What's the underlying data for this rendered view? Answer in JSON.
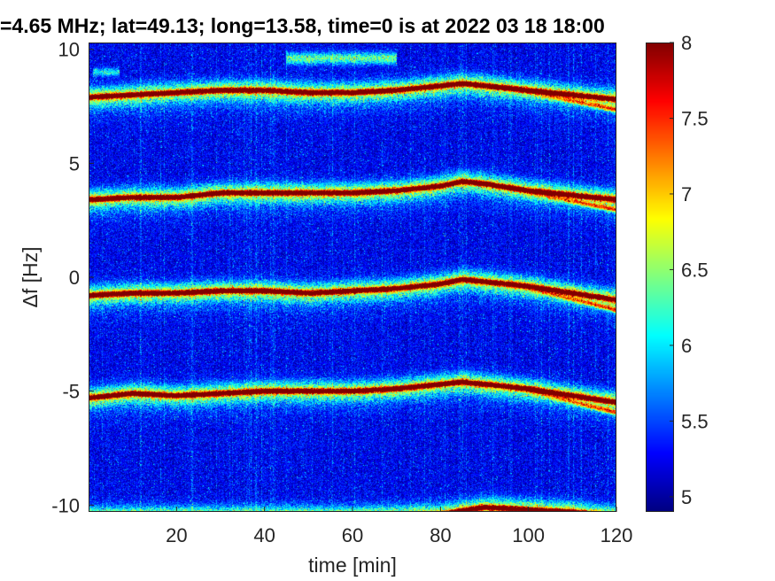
{
  "chart_data": {
    "type": "heatmap",
    "title": "=4.65 MHz;  lat=49.13; long=13.58, time=0 is at 2022 03 18 18:00",
    "xlabel": "time [min]",
    "ylabel": "Δf [Hz]",
    "xlim": [
      0,
      120
    ],
    "ylim": [
      -10.3,
      10.3
    ],
    "xticks": [
      20,
      40,
      60,
      80,
      100,
      120
    ],
    "xtick_labels": [
      "20",
      "40",
      "60",
      "80",
      "100",
      "120"
    ],
    "yticks": [
      10,
      5,
      0,
      -5,
      -10
    ],
    "ytick_labels": [
      "10",
      "5",
      "0",
      "-5",
      "-10"
    ],
    "colorbar": {
      "colormap": "jet",
      "clim": [
        4.9,
        8.0
      ],
      "ticks": [
        8,
        7.5,
        7,
        6.5,
        6,
        5.5,
        5
      ],
      "tick_labels": [
        "8",
        "7.5",
        "7",
        "6.5",
        "6",
        "5.5",
        "5"
      ]
    },
    "ridges": [
      {
        "x": [
          0,
          10,
          20,
          30,
          40,
          50,
          60,
          70,
          80,
          85,
          90,
          100,
          110,
          120
        ],
        "y": [
          7.9,
          8.0,
          8.1,
          8.2,
          8.2,
          8.1,
          8.1,
          8.2,
          8.4,
          8.5,
          8.4,
          8.2,
          8.0,
          7.8
        ]
      },
      {
        "x": [
          0,
          10,
          20,
          30,
          40,
          50,
          60,
          70,
          80,
          85,
          90,
          100,
          110,
          120
        ],
        "y": [
          3.4,
          3.5,
          3.5,
          3.7,
          3.7,
          3.7,
          3.7,
          3.8,
          4.0,
          4.2,
          4.1,
          3.8,
          3.6,
          3.4
        ]
      },
      {
        "x": [
          0,
          10,
          20,
          30,
          40,
          50,
          60,
          70,
          80,
          85,
          90,
          100,
          110,
          120
        ],
        "y": [
          -0.8,
          -0.7,
          -0.7,
          -0.6,
          -0.6,
          -0.7,
          -0.6,
          -0.5,
          -0.3,
          -0.1,
          -0.2,
          -0.4,
          -0.7,
          -1.0
        ]
      },
      {
        "x": [
          0,
          10,
          20,
          30,
          40,
          50,
          60,
          70,
          80,
          85,
          90,
          100,
          110,
          120
        ],
        "y": [
          -5.3,
          -5.1,
          -5.2,
          -5.1,
          -5.0,
          -5.0,
          -5.0,
          -4.9,
          -4.7,
          -4.6,
          -4.7,
          -4.9,
          -5.2,
          -5.5
        ]
      },
      {
        "x": [
          0,
          20,
          40,
          60,
          80,
          90,
          100,
          110,
          120
        ],
        "y": [
          -10.5,
          -10.5,
          -10.5,
          -10.5,
          -10.4,
          -10.1,
          -10.2,
          -10.3,
          -10.5
        ]
      }
    ],
    "secondary_ridge_segment": {
      "x": [
        45,
        50,
        55,
        60,
        65,
        70
      ],
      "y": [
        9.6,
        9.6,
        9.6,
        9.6,
        9.6,
        9.6
      ]
    },
    "upper_left_fragment": {
      "x": [
        1,
        3,
        5,
        7
      ],
      "y": [
        9.0,
        9.0,
        9.0,
        9.0
      ]
    },
    "colors": {
      "background_min": "#00008f",
      "ridge_max": "#800000"
    }
  }
}
